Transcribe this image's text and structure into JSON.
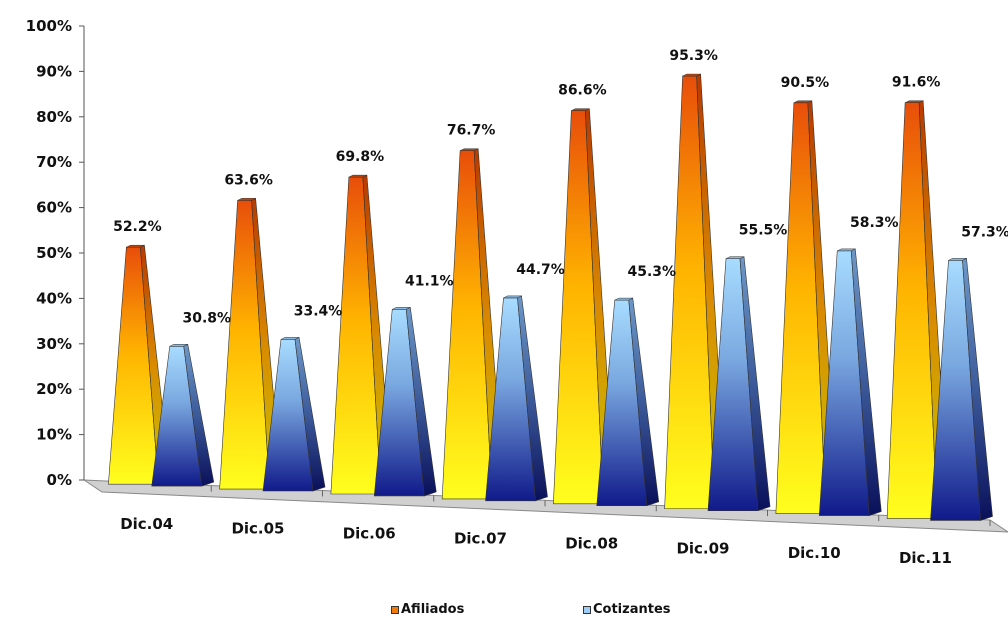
{
  "chart_data": {
    "type": "bar",
    "shape": "3d-pyramid",
    "categories": [
      "Dic.04",
      "Dic.05",
      "Dic.06",
      "Dic.07",
      "Dic.08",
      "Dic.09",
      "Dic.10",
      "Dic.11"
    ],
    "series": [
      {
        "name": "Afiliados",
        "values": [
          52.2,
          63.6,
          69.8,
          76.7,
          86.6,
          95.3,
          90.5,
          91.6
        ],
        "labels": [
          "52.2%",
          "63.6%",
          "69.8%",
          "76.7%",
          "86.6%",
          "95.3%",
          "90.5%",
          "91.6%"
        ],
        "color": "#f07a0a"
      },
      {
        "name": "Cotizantes",
        "values": [
          30.8,
          33.4,
          41.1,
          44.7,
          45.3,
          55.5,
          58.3,
          57.3
        ],
        "labels": [
          "30.8%",
          "33.4%",
          "41.1%",
          "44.7%",
          "45.3%",
          "55.5%",
          "58.3%",
          "57.3%"
        ],
        "color": "#9ecdf5"
      }
    ],
    "yticks": [
      "0%",
      "10%",
      "20%",
      "30%",
      "40%",
      "50%",
      "60%",
      "70%",
      "80%",
      "90%",
      "100%"
    ],
    "ylim": [
      0,
      100
    ],
    "title": "",
    "xlabel": "",
    "ylabel": "",
    "grid": false,
    "legend_position": "bottom"
  }
}
